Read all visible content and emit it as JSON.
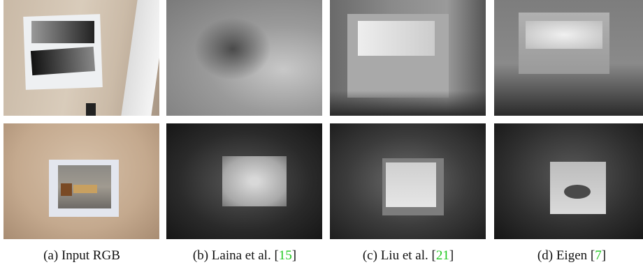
{
  "figure": {
    "panels": [
      {
        "label": "(a)",
        "caption": "Input RGB"
      },
      {
        "label": "(b)",
        "caption": "Laina et al.",
        "citation": [
          "[",
          "15",
          "]"
        ]
      },
      {
        "label": "(c)",
        "caption": "Liu et al.",
        "citation": [
          "[",
          "21",
          "]"
        ]
      },
      {
        "label": "(d)",
        "caption": "Eigen",
        "citation": [
          "[",
          "7",
          "]"
        ]
      }
    ]
  }
}
